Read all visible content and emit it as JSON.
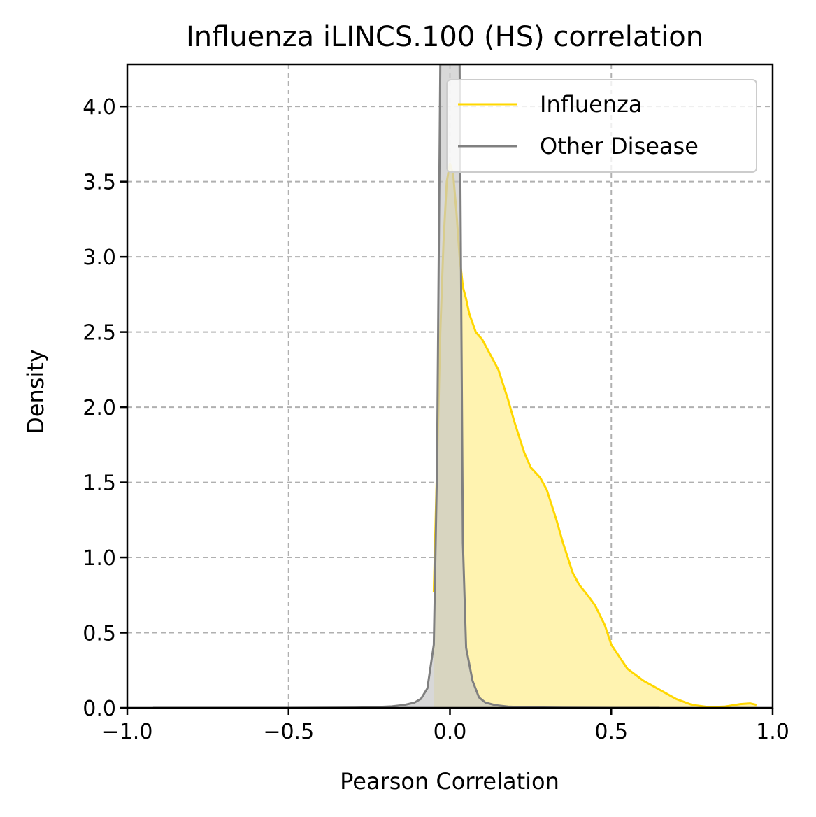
{
  "chart_data": {
    "type": "area",
    "title": "Influenza iLINCS.100 (HS) correlation",
    "xlabel": "Pearson Correlation",
    "ylabel": "Density",
    "xlim": [
      -1.0,
      1.0
    ],
    "ylim": [
      0.0,
      4.28
    ],
    "xticks": [
      -1.0,
      -0.5,
      0.0,
      0.5,
      1.0
    ],
    "xtick_labels": [
      "−1.0",
      "−0.5",
      "0.0",
      "0.5",
      "1.0"
    ],
    "yticks": [
      0.0,
      0.5,
      1.0,
      1.5,
      2.0,
      2.5,
      3.0,
      3.5,
      4.0
    ],
    "ytick_labels": [
      "0.0",
      "0.5",
      "1.0",
      "1.5",
      "2.0",
      "2.5",
      "3.0",
      "3.5",
      "4.0"
    ],
    "grid": true,
    "legend_position": "top-right",
    "series": [
      {
        "name": "Influenza",
        "color": "#ffd700",
        "fill_color": "#fff3b0",
        "x": [
          -0.05,
          -0.04,
          -0.03,
          -0.02,
          -0.01,
          0.0,
          0.01,
          0.02,
          0.03,
          0.04,
          0.05,
          0.06,
          0.08,
          0.1,
          0.12,
          0.15,
          0.18,
          0.2,
          0.23,
          0.25,
          0.28,
          0.3,
          0.33,
          0.35,
          0.38,
          0.4,
          0.43,
          0.45,
          0.48,
          0.5,
          0.55,
          0.6,
          0.65,
          0.7,
          0.75,
          0.8,
          0.85,
          0.9,
          0.93,
          0.95
        ],
        "y": [
          0.77,
          1.6,
          2.5,
          3.1,
          3.5,
          3.62,
          3.55,
          3.3,
          3.0,
          2.8,
          2.72,
          2.62,
          2.5,
          2.45,
          2.37,
          2.25,
          2.05,
          1.9,
          1.7,
          1.6,
          1.53,
          1.45,
          1.25,
          1.1,
          0.9,
          0.82,
          0.74,
          0.68,
          0.55,
          0.42,
          0.26,
          0.18,
          0.12,
          0.06,
          0.02,
          0.005,
          0.008,
          0.025,
          0.03,
          0.02
        ]
      },
      {
        "name": "Other Disease",
        "color": "#808080",
        "fill_color": "#c8c8c8",
        "x": [
          -0.92,
          -0.7,
          -0.5,
          -0.35,
          -0.25,
          -0.18,
          -0.14,
          -0.11,
          -0.09,
          -0.07,
          -0.05,
          -0.04,
          -0.03,
          -0.02,
          -0.015,
          -0.01,
          0.0,
          0.01,
          0.015,
          0.02,
          0.03,
          0.04,
          0.05,
          0.07,
          0.09,
          0.11,
          0.14,
          0.18,
          0.25,
          0.35,
          0.5,
          0.65
        ],
        "y": [
          0.0,
          0.0,
          0.0,
          0.001,
          0.003,
          0.01,
          0.02,
          0.035,
          0.06,
          0.13,
          0.42,
          1.6,
          4.28,
          4.28,
          4.28,
          4.28,
          4.28,
          4.28,
          4.28,
          4.28,
          4.28,
          1.1,
          0.4,
          0.18,
          0.07,
          0.035,
          0.018,
          0.008,
          0.003,
          0.001,
          0.0,
          0.0
        ]
      }
    ]
  }
}
